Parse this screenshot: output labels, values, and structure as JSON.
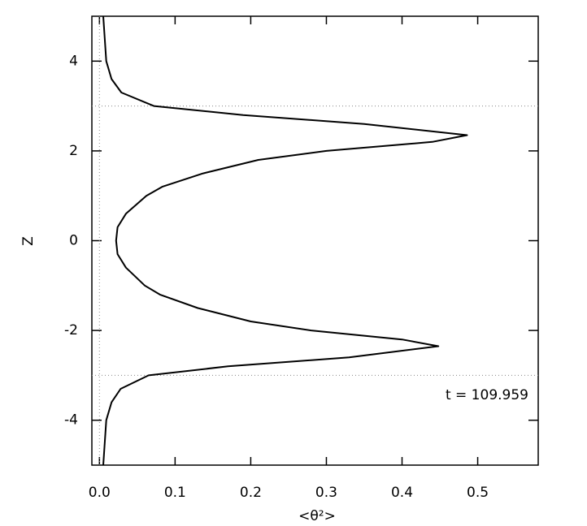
{
  "chart_data": {
    "type": "line",
    "xlabel": "<θ²>",
    "ylabel": "Z",
    "annotation": "t = 109.959",
    "xlim": [
      -0.01,
      0.58
    ],
    "ylim": [
      -5,
      5
    ],
    "xticks": [
      {
        "value": 0,
        "label": "0.0"
      },
      0.1,
      0.2,
      0.3,
      0.4,
      0.5
    ],
    "yticks": [
      -4,
      -2,
      0,
      2,
      4
    ],
    "reference_lines": {
      "x": [
        0
      ],
      "y": [
        -3,
        3
      ]
    },
    "color": "#000000",
    "x": [
      0.005,
      0.009,
      0.016,
      0.028,
      0.065,
      0.17,
      0.33,
      0.448,
      0.4,
      0.28,
      0.2,
      0.13,
      0.08,
      0.06,
      0.035,
      0.024,
      0.022,
      0.024,
      0.035,
      0.062,
      0.083,
      0.137,
      0.21,
      0.3,
      0.44,
      0.486,
      0.35,
      0.19,
      0.072,
      0.029,
      0.016,
      0.009,
      0.005
    ],
    "values": [
      -5,
      -4,
      -3.6,
      -3.3,
      -3,
      -2.8,
      -2.6,
      -2.35,
      -2.2,
      -2,
      -1.8,
      -1.5,
      -1.2,
      -1,
      -0.6,
      -0.3,
      0,
      0.3,
      0.6,
      1,
      1.2,
      1.5,
      1.8,
      2,
      2.2,
      2.35,
      2.6,
      2.8,
      3,
      3.3,
      3.6,
      4,
      5
    ]
  }
}
